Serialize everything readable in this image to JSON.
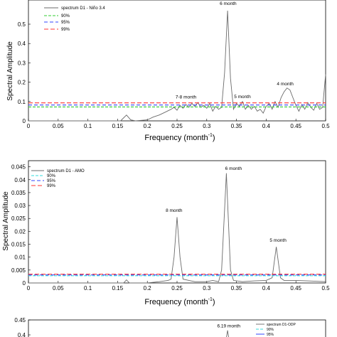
{
  "chart_data": [
    {
      "type": "line",
      "ylabel": "Spectral Amplitude",
      "xlabel": {
        "main": "Frequency (month",
        "sup": "-1",
        "tail": ")"
      },
      "xlim": [
        0,
        0.5
      ],
      "ylim": [
        0,
        0.6
      ],
      "x_ticks": [
        "0",
        "0.05",
        "0.1",
        "0.15",
        "0.2",
        "0.25",
        "0.3",
        "0.35",
        "0.4",
        "0.45",
        "0.5"
      ],
      "y_ticks": [
        "0",
        "0.1",
        "0.2",
        "0.3",
        "0.4",
        "0.5"
      ],
      "series": [
        {
          "name": "spectrum D1 - Niño 3.4",
          "color": "#6b6b6b",
          "points": [
            [
              0.0,
              0.0
            ],
            [
              0.155,
              0.0
            ],
            [
              0.165,
              0.03
            ],
            [
              0.172,
              0.005
            ],
            [
              0.18,
              0.0
            ],
            [
              0.2,
              0.005
            ],
            [
              0.21,
              0.02
            ],
            [
              0.22,
              0.03
            ],
            [
              0.23,
              0.045
            ],
            [
              0.24,
              0.06
            ],
            [
              0.245,
              0.07
            ],
            [
              0.25,
              0.055
            ],
            [
              0.255,
              0.08
            ],
            [
              0.26,
              0.065
            ],
            [
              0.265,
              0.085
            ],
            [
              0.27,
              0.07
            ],
            [
              0.275,
              0.09
            ],
            [
              0.28,
              0.075
            ],
            [
              0.285,
              0.095
            ],
            [
              0.29,
              0.07
            ],
            [
              0.295,
              0.08
            ],
            [
              0.3,
              0.065
            ],
            [
              0.305,
              0.09
            ],
            [
              0.31,
              0.05
            ],
            [
              0.315,
              0.075
            ],
            [
              0.32,
              0.06
            ],
            [
              0.325,
              0.07
            ],
            [
              0.33,
              0.25
            ],
            [
              0.335,
              0.57
            ],
            [
              0.34,
              0.22
            ],
            [
              0.345,
              0.06
            ],
            [
              0.35,
              0.09
            ],
            [
              0.355,
              0.075
            ],
            [
              0.36,
              0.1
            ],
            [
              0.365,
              0.06
            ],
            [
              0.37,
              0.08
            ],
            [
              0.375,
              0.06
            ],
            [
              0.38,
              0.075
            ],
            [
              0.385,
              0.05
            ],
            [
              0.39,
              0.06
            ],
            [
              0.395,
              0.04
            ],
            [
              0.4,
              0.075
            ],
            [
              0.405,
              0.09
            ],
            [
              0.41,
              0.06
            ],
            [
              0.415,
              0.1
            ],
            [
              0.42,
              0.07
            ],
            [
              0.425,
              0.12
            ],
            [
              0.43,
              0.15
            ],
            [
              0.435,
              0.17
            ],
            [
              0.44,
              0.16
            ],
            [
              0.445,
              0.12
            ],
            [
              0.45,
              0.08
            ],
            [
              0.455,
              0.05
            ],
            [
              0.46,
              0.085
            ],
            [
              0.465,
              0.06
            ],
            [
              0.47,
              0.095
            ],
            [
              0.475,
              0.07
            ],
            [
              0.48,
              0.055
            ],
            [
              0.485,
              0.09
            ],
            [
              0.49,
              0.06
            ],
            [
              0.495,
              0.07
            ],
            [
              0.5,
              0.24
            ]
          ]
        },
        {
          "name": "90%",
          "color": "#33cc33",
          "dash": "4,2",
          "points": [
            [
              0.0,
              0.072
            ],
            [
              0.5,
              0.072
            ]
          ]
        },
        {
          "name": "95%",
          "color": "#3344ff",
          "dash": "5,3",
          "points": [
            [
              0.0,
              0.082
            ],
            [
              0.5,
              0.082
            ]
          ]
        },
        {
          "name": "99%",
          "color": "#ff3333",
          "dash": "6,3",
          "points": [
            [
              0.0,
              0.093
            ],
            [
              0.5,
              0.093
            ]
          ]
        }
      ],
      "annotations": [
        {
          "text": "6 month",
          "x": 0.336,
          "y": 0.6
        },
        {
          "text": "7-8 month",
          "x": 0.265,
          "y": 0.115
        },
        {
          "text": "5 month",
          "x": 0.36,
          "y": 0.118
        },
        {
          "text": "4 month",
          "x": 0.432,
          "y": 0.183
        }
      ]
    },
    {
      "type": "line",
      "ylabel": "Spectral Amplitude",
      "xlabel": {
        "main": "Frequency (month",
        "sup": "-1",
        "tail": ")"
      },
      "xlim": [
        0,
        0.5
      ],
      "ylim": [
        0,
        0.045
      ],
      "x_ticks": [
        "0",
        "0.05",
        "0.1",
        "0.15",
        "0.2",
        "0.25",
        "0.3",
        "0.35",
        "0.4",
        "0.45",
        "0.5"
      ],
      "y_ticks": [
        "0",
        "0.005",
        "0.01",
        "0.015",
        "0.02",
        "0.025",
        "0.03",
        "0.035",
        "0.04",
        "0.045"
      ],
      "series": [
        {
          "name": "spectrum D1 - AMO",
          "color": "#6b6b6b",
          "points": [
            [
              0.0,
              0.0
            ],
            [
              0.16,
              0.0
            ],
            [
              0.165,
              0.0012
            ],
            [
              0.17,
              0.0
            ],
            [
              0.2,
              0.0
            ],
            [
              0.22,
              0.0005
            ],
            [
              0.235,
              0.001
            ],
            [
              0.24,
              0.0015
            ],
            [
              0.245,
              0.01
            ],
            [
              0.25,
              0.0255
            ],
            [
              0.255,
              0.01
            ],
            [
              0.26,
              0.0015
            ],
            [
              0.27,
              0.001
            ],
            [
              0.28,
              0.0005
            ],
            [
              0.3,
              0.0005
            ],
            [
              0.31,
              0.001
            ],
            [
              0.32,
              0.0005
            ],
            [
              0.325,
              0.005
            ],
            [
              0.333,
              0.0425
            ],
            [
              0.34,
              0.005
            ],
            [
              0.345,
              0.001
            ],
            [
              0.36,
              0.0005
            ],
            [
              0.38,
              0.0008
            ],
            [
              0.4,
              0.001
            ],
            [
              0.41,
              0.002
            ],
            [
              0.417,
              0.014
            ],
            [
              0.424,
              0.002
            ],
            [
              0.43,
              0.001
            ],
            [
              0.45,
              0.001
            ],
            [
              0.47,
              0.0008
            ],
            [
              0.5,
              0.0005
            ]
          ]
        },
        {
          "name": "90%",
          "color": "#33dddd",
          "dash": "4,2",
          "points": [
            [
              0.0,
              0.0028
            ],
            [
              0.5,
              0.0028
            ]
          ]
        },
        {
          "name": "95%",
          "color": "#3344ff",
          "dash": "5,3",
          "points": [
            [
              0.0,
              0.0031
            ],
            [
              0.5,
              0.0031
            ]
          ]
        },
        {
          "name": "99%",
          "color": "#ff3333",
          "dash": "6,3",
          "points": [
            [
              0.0,
              0.0034
            ],
            [
              0.5,
              0.0034
            ]
          ]
        }
      ],
      "annotations": [
        {
          "text": "8 month",
          "x": 0.245,
          "y": 0.0275
        },
        {
          "text": "6 month",
          "x": 0.345,
          "y": 0.0438
        },
        {
          "text": "5 month",
          "x": 0.42,
          "y": 0.016
        }
      ]
    },
    {
      "type": "line",
      "ylabel": "",
      "xlim": [
        0,
        0.5
      ],
      "ylim": [
        0,
        0.45
      ],
      "y_ticks": [
        "0.4",
        "0.45"
      ],
      "series": [
        {
          "name": "spectrum D1-ODP",
          "color": "#6b6b6b",
          "points": [
            [
              0.333,
              0.39
            ],
            [
              0.335,
              0.415
            ],
            [
              0.337,
              0.39
            ]
          ]
        },
        {
          "name": "90%",
          "color": "#33dddd"
        },
        {
          "name": "95%",
          "color": "#3344ff"
        }
      ],
      "annotations": [
        {
          "text": "6.19 month",
          "x": 0.337,
          "y": 0.425
        }
      ]
    }
  ]
}
